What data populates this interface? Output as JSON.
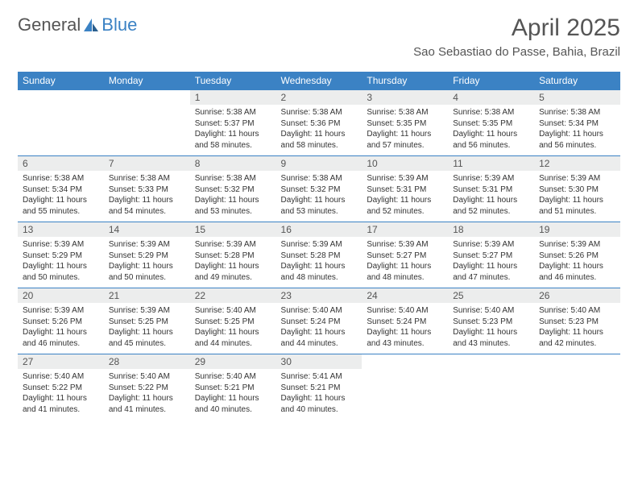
{
  "brand": {
    "part1": "General",
    "part2": "Blue"
  },
  "header": {
    "month_title": "April 2025",
    "location": "Sao Sebastiao do Passe, Bahia, Brazil"
  },
  "colors": {
    "accent": "#3b82c4",
    "header_bg": "#3b82c4",
    "daynum_bg": "#eceded",
    "text": "#333333",
    "muted": "#555555",
    "background": "#ffffff"
  },
  "calendar": {
    "day_headers": [
      "Sunday",
      "Monday",
      "Tuesday",
      "Wednesday",
      "Thursday",
      "Friday",
      "Saturday"
    ],
    "weeks": [
      [
        {
          "n": "",
          "sr": "",
          "ss": "",
          "dl": ""
        },
        {
          "n": "",
          "sr": "",
          "ss": "",
          "dl": ""
        },
        {
          "n": "1",
          "sr": "Sunrise: 5:38 AM",
          "ss": "Sunset: 5:37 PM",
          "dl": "Daylight: 11 hours and 58 minutes."
        },
        {
          "n": "2",
          "sr": "Sunrise: 5:38 AM",
          "ss": "Sunset: 5:36 PM",
          "dl": "Daylight: 11 hours and 58 minutes."
        },
        {
          "n": "3",
          "sr": "Sunrise: 5:38 AM",
          "ss": "Sunset: 5:35 PM",
          "dl": "Daylight: 11 hours and 57 minutes."
        },
        {
          "n": "4",
          "sr": "Sunrise: 5:38 AM",
          "ss": "Sunset: 5:35 PM",
          "dl": "Daylight: 11 hours and 56 minutes."
        },
        {
          "n": "5",
          "sr": "Sunrise: 5:38 AM",
          "ss": "Sunset: 5:34 PM",
          "dl": "Daylight: 11 hours and 56 minutes."
        }
      ],
      [
        {
          "n": "6",
          "sr": "Sunrise: 5:38 AM",
          "ss": "Sunset: 5:34 PM",
          "dl": "Daylight: 11 hours and 55 minutes."
        },
        {
          "n": "7",
          "sr": "Sunrise: 5:38 AM",
          "ss": "Sunset: 5:33 PM",
          "dl": "Daylight: 11 hours and 54 minutes."
        },
        {
          "n": "8",
          "sr": "Sunrise: 5:38 AM",
          "ss": "Sunset: 5:32 PM",
          "dl": "Daylight: 11 hours and 53 minutes."
        },
        {
          "n": "9",
          "sr": "Sunrise: 5:38 AM",
          "ss": "Sunset: 5:32 PM",
          "dl": "Daylight: 11 hours and 53 minutes."
        },
        {
          "n": "10",
          "sr": "Sunrise: 5:39 AM",
          "ss": "Sunset: 5:31 PM",
          "dl": "Daylight: 11 hours and 52 minutes."
        },
        {
          "n": "11",
          "sr": "Sunrise: 5:39 AM",
          "ss": "Sunset: 5:31 PM",
          "dl": "Daylight: 11 hours and 52 minutes."
        },
        {
          "n": "12",
          "sr": "Sunrise: 5:39 AM",
          "ss": "Sunset: 5:30 PM",
          "dl": "Daylight: 11 hours and 51 minutes."
        }
      ],
      [
        {
          "n": "13",
          "sr": "Sunrise: 5:39 AM",
          "ss": "Sunset: 5:29 PM",
          "dl": "Daylight: 11 hours and 50 minutes."
        },
        {
          "n": "14",
          "sr": "Sunrise: 5:39 AM",
          "ss": "Sunset: 5:29 PM",
          "dl": "Daylight: 11 hours and 50 minutes."
        },
        {
          "n": "15",
          "sr": "Sunrise: 5:39 AM",
          "ss": "Sunset: 5:28 PM",
          "dl": "Daylight: 11 hours and 49 minutes."
        },
        {
          "n": "16",
          "sr": "Sunrise: 5:39 AM",
          "ss": "Sunset: 5:28 PM",
          "dl": "Daylight: 11 hours and 48 minutes."
        },
        {
          "n": "17",
          "sr": "Sunrise: 5:39 AM",
          "ss": "Sunset: 5:27 PM",
          "dl": "Daylight: 11 hours and 48 minutes."
        },
        {
          "n": "18",
          "sr": "Sunrise: 5:39 AM",
          "ss": "Sunset: 5:27 PM",
          "dl": "Daylight: 11 hours and 47 minutes."
        },
        {
          "n": "19",
          "sr": "Sunrise: 5:39 AM",
          "ss": "Sunset: 5:26 PM",
          "dl": "Daylight: 11 hours and 46 minutes."
        }
      ],
      [
        {
          "n": "20",
          "sr": "Sunrise: 5:39 AM",
          "ss": "Sunset: 5:26 PM",
          "dl": "Daylight: 11 hours and 46 minutes."
        },
        {
          "n": "21",
          "sr": "Sunrise: 5:39 AM",
          "ss": "Sunset: 5:25 PM",
          "dl": "Daylight: 11 hours and 45 minutes."
        },
        {
          "n": "22",
          "sr": "Sunrise: 5:40 AM",
          "ss": "Sunset: 5:25 PM",
          "dl": "Daylight: 11 hours and 44 minutes."
        },
        {
          "n": "23",
          "sr": "Sunrise: 5:40 AM",
          "ss": "Sunset: 5:24 PM",
          "dl": "Daylight: 11 hours and 44 minutes."
        },
        {
          "n": "24",
          "sr": "Sunrise: 5:40 AM",
          "ss": "Sunset: 5:24 PM",
          "dl": "Daylight: 11 hours and 43 minutes."
        },
        {
          "n": "25",
          "sr": "Sunrise: 5:40 AM",
          "ss": "Sunset: 5:23 PM",
          "dl": "Daylight: 11 hours and 43 minutes."
        },
        {
          "n": "26",
          "sr": "Sunrise: 5:40 AM",
          "ss": "Sunset: 5:23 PM",
          "dl": "Daylight: 11 hours and 42 minutes."
        }
      ],
      [
        {
          "n": "27",
          "sr": "Sunrise: 5:40 AM",
          "ss": "Sunset: 5:22 PM",
          "dl": "Daylight: 11 hours and 41 minutes."
        },
        {
          "n": "28",
          "sr": "Sunrise: 5:40 AM",
          "ss": "Sunset: 5:22 PM",
          "dl": "Daylight: 11 hours and 41 minutes."
        },
        {
          "n": "29",
          "sr": "Sunrise: 5:40 AM",
          "ss": "Sunset: 5:21 PM",
          "dl": "Daylight: 11 hours and 40 minutes."
        },
        {
          "n": "30",
          "sr": "Sunrise: 5:41 AM",
          "ss": "Sunset: 5:21 PM",
          "dl": "Daylight: 11 hours and 40 minutes."
        },
        {
          "n": "",
          "sr": "",
          "ss": "",
          "dl": ""
        },
        {
          "n": "",
          "sr": "",
          "ss": "",
          "dl": ""
        },
        {
          "n": "",
          "sr": "",
          "ss": "",
          "dl": ""
        }
      ]
    ]
  }
}
